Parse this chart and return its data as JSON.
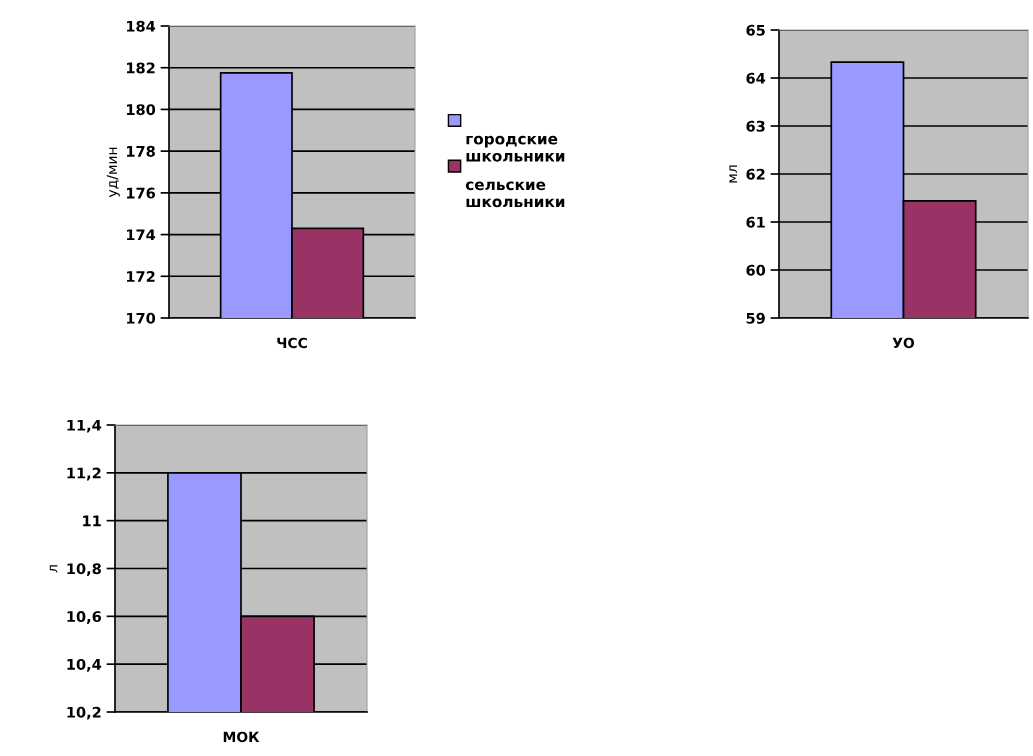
{
  "chart_data": [
    {
      "type": "bar",
      "categories": [
        "ЧСС"
      ],
      "ylabel": "уд/мин",
      "ylim": [
        170,
        184
      ],
      "yticks": [
        170,
        172,
        174,
        176,
        178,
        180,
        182,
        184
      ],
      "grid": "y",
      "legend": "right",
      "series": [
        {
          "name": "городские школьники",
          "color": "#9999ff",
          "values": [
            181.75
          ]
        },
        {
          "name": "сельские школьники",
          "color": "#993366",
          "values": [
            174.3
          ]
        }
      ]
    },
    {
      "type": "bar",
      "categories": [
        "УО"
      ],
      "ylabel": "мл",
      "ylim": [
        59,
        65
      ],
      "yticks": [
        59,
        60,
        61,
        62,
        63,
        64,
        65
      ],
      "grid": "y",
      "series": [
        {
          "color": "#9999ff",
          "values": [
            64.33
          ]
        },
        {
          "color": "#993366",
          "values": [
            61.44
          ]
        }
      ]
    },
    {
      "type": "bar",
      "categories": [
        "МОК"
      ],
      "ylabel": "л",
      "ylim": [
        10.2,
        11.4
      ],
      "yticks": [
        {
          "value": 10.2,
          "label": "10,2"
        },
        {
          "value": 10.4,
          "label": "10,4"
        },
        {
          "value": 10.6,
          "label": "10,6"
        },
        {
          "value": 10.8,
          "label": "10,8"
        },
        {
          "value": 11,
          "label": "11"
        },
        {
          "value": 11.2,
          "label": "11,2"
        },
        {
          "value": 11.4,
          "label": "11,4"
        }
      ],
      "grid": "y",
      "series": [
        {
          "color": "#9999ff",
          "values": [
            11.2
          ]
        },
        {
          "color": "#993366",
          "values": [
            10.6
          ]
        }
      ]
    }
  ]
}
